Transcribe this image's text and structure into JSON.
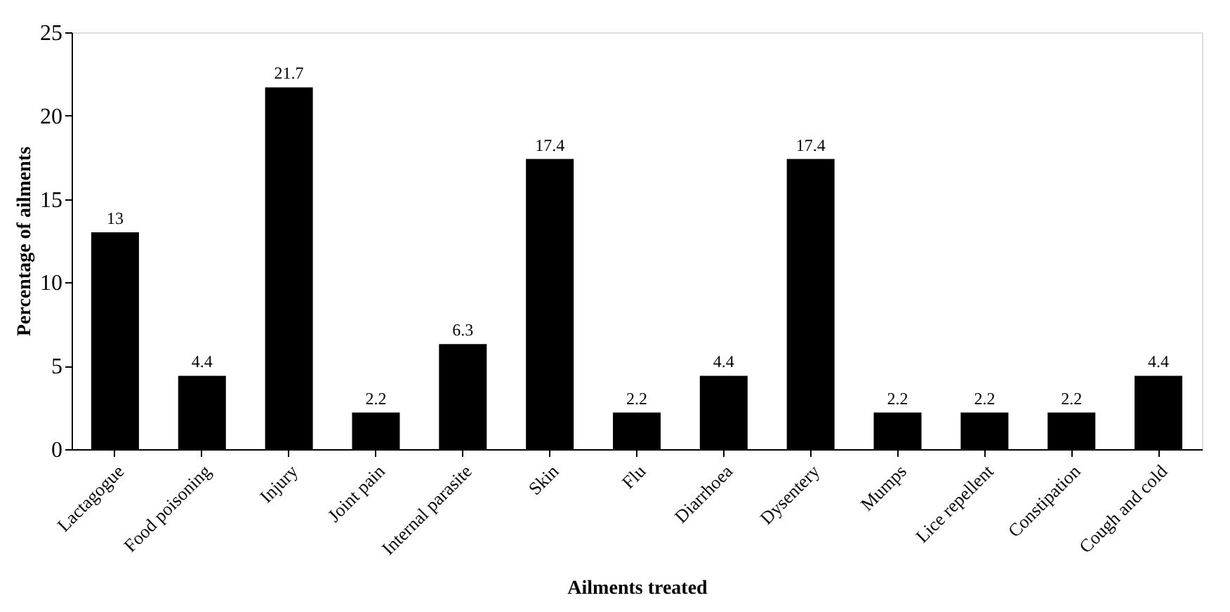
{
  "chart_data": {
    "type": "bar",
    "xlabel": "Ailments treated",
    "ylabel": "Percentage of ailments",
    "categories": [
      "Lactagogue",
      "Food poisoning",
      "Injury",
      "Joint pain",
      "Internal parasite",
      "Skin",
      "Flu",
      "Diarrhoea",
      "Dysentery",
      "Mumps",
      "Lice repellent",
      "Constipation",
      "Cough and cold"
    ],
    "values": [
      13,
      4.4,
      21.7,
      2.2,
      6.3,
      17.4,
      2.2,
      4.4,
      17.4,
      2.2,
      2.2,
      2.2,
      4.4
    ],
    "color": "#000000",
    "ylim": [
      0,
      25
    ],
    "yticks": [
      0,
      5,
      10,
      15,
      20,
      25
    ],
    "grid": false,
    "data_labels": true
  }
}
